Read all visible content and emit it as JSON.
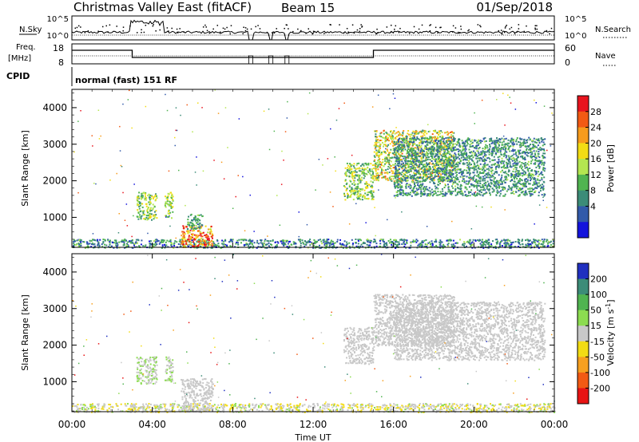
{
  "header": {
    "site": "Christmas Valley East (fitACF)",
    "beam": "Beam 15",
    "date": "01/Sep/2018",
    "mode": "normal (fast) 151 RF"
  },
  "strips": {
    "nsky_label": "N.Sky",
    "nsky_ticks": [
      "10^5",
      "10^0"
    ],
    "nsearch_label": "N.Search",
    "nsearch_ticks": [
      "10^5",
      "10^0"
    ],
    "freq_label_1": "Freq.",
    "freq_label_2": "[MHz]",
    "freq_ticks": [
      "18",
      "8"
    ],
    "nave_label": "Nave",
    "nave_ticks": [
      "60",
      "0"
    ],
    "cpid_label": "CPID"
  },
  "axes": {
    "ylabel": "Slant Range [km]",
    "yticks": [
      1000,
      2000,
      3000,
      4000
    ],
    "xlabel": "Time UT",
    "xticks": [
      "00:00",
      "04:00",
      "08:00",
      "12:00",
      "16:00",
      "20:00",
      "00:00"
    ]
  },
  "power_colorbar": {
    "label": "Power [dB]",
    "ticks": [
      "28",
      "24",
      "20",
      "16",
      "12",
      "8",
      "4"
    ],
    "colors": [
      "#e8141e",
      "#f25a14",
      "#f79b1c",
      "#f2dc14",
      "#b4e650",
      "#50b450",
      "#3c8c78",
      "#325aaa",
      "#1414dc"
    ]
  },
  "velocity_colorbar": {
    "label": "Velocity [m s^-1]",
    "ticks": [
      "200",
      "100",
      "50",
      "15",
      "-15",
      "-50",
      "-100",
      "-200"
    ],
    "colors": [
      "#2030c0",
      "#3c8c78",
      "#50b450",
      "#8cdc50",
      "#c8c8c8",
      "#f2dc14",
      "#f7a020",
      "#f25a14",
      "#e81414"
    ]
  },
  "chart_data": [
    {
      "type": "heatmap",
      "name": "power",
      "x_range_hours": [
        0,
        24
      ],
      "y_range_km": [
        180,
        4500
      ],
      "colorbar_range_db": [
        0,
        30
      ],
      "echo_regions": [
        {
          "t0": 0.0,
          "t1": 24.0,
          "r0": 180,
          "r1": 420,
          "v0": 2,
          "v1": 14
        },
        {
          "t0": 3.2,
          "t1": 4.2,
          "r0": 950,
          "r1": 1700,
          "v0": 8,
          "v1": 20
        },
        {
          "t0": 4.6,
          "t1": 5.0,
          "r0": 1000,
          "r1": 1700,
          "v0": 10,
          "v1": 20
        },
        {
          "t0": 5.4,
          "t1": 7.0,
          "r0": 200,
          "r1": 800,
          "v0": 16,
          "v1": 30
        },
        {
          "t0": 5.7,
          "t1": 6.5,
          "r0": 700,
          "r1": 1100,
          "v0": 6,
          "v1": 14
        },
        {
          "t0": 13.5,
          "t1": 15.0,
          "r0": 1500,
          "r1": 2500,
          "v0": 8,
          "v1": 20
        },
        {
          "t0": 15.0,
          "t1": 19.0,
          "r0": 2000,
          "r1": 3400,
          "v0": 8,
          "v1": 24
        },
        {
          "t0": 16.0,
          "t1": 23.5,
          "r0": 1600,
          "r1": 3200,
          "v0": 4,
          "v1": 14
        }
      ]
    },
    {
      "type": "heatmap",
      "name": "velocity",
      "x_range_hours": [
        0,
        24
      ],
      "y_range_km": [
        180,
        4500
      ],
      "colorbar_range": [
        -250,
        250
      ],
      "echo_regions": [
        {
          "t0": 0.0,
          "t1": 24.0,
          "r0": 180,
          "r1": 420,
          "v0": -60,
          "v1": 40
        },
        {
          "t0": 3.2,
          "t1": 4.2,
          "r0": 950,
          "r1": 1700,
          "v0": -20,
          "v1": 60
        },
        {
          "t0": 4.6,
          "t1": 5.0,
          "r0": 1000,
          "r1": 1700,
          "v0": -20,
          "v1": 60
        },
        {
          "t0": 5.4,
          "t1": 7.0,
          "r0": 200,
          "r1": 1100,
          "v0": -15,
          "v1": 15
        },
        {
          "t0": 13.5,
          "t1": 15.0,
          "r0": 1500,
          "r1": 2500,
          "v0": -15,
          "v1": 15
        },
        {
          "t0": 15.0,
          "t1": 19.0,
          "r0": 2000,
          "r1": 3400,
          "v0": -15,
          "v1": 15
        },
        {
          "t0": 16.0,
          "t1": 23.5,
          "r0": 1600,
          "r1": 3200,
          "v0": -15,
          "v1": 15
        }
      ]
    }
  ]
}
